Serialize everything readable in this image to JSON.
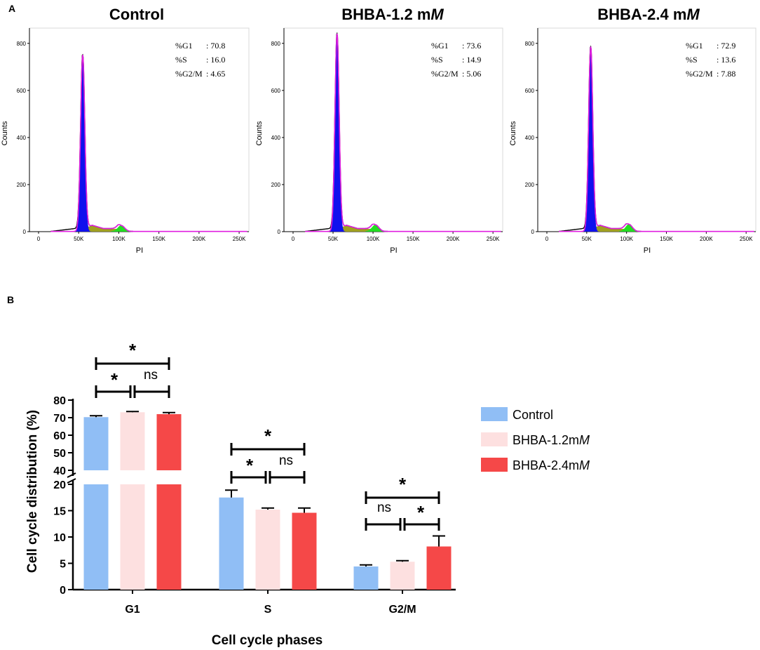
{
  "panel_a_label": "A",
  "panel_b_label": "B",
  "colors": {
    "control": "#90bef5",
    "bhba_1_2": "#fde0e0",
    "bhba_2_4": "#f54848",
    "g1_fill": "#1010ee",
    "s_fill": "#a0a020",
    "g2m_fill": "#22dd22",
    "fit_outline": "#e020e0"
  },
  "chart_data": [
    {
      "type": "area",
      "title": "Control",
      "title_plain": "Control",
      "title_italic": "",
      "xlabel": "PI",
      "ylabel": "Counts",
      "x_ticks": [
        "0",
        "50K",
        "100K",
        "150K",
        "200K",
        "250K"
      ],
      "y_ticks": [
        "0",
        "200",
        "400",
        "600",
        "800"
      ],
      "xlim": [
        0,
        262144
      ],
      "ylim": [
        0,
        850
      ],
      "g1_peak_x": 55000,
      "g1_peak_counts": 750,
      "g2m_peak_x": 103000,
      "g2m_peak_counts": 25,
      "stats": [
        {
          "label": "%G1",
          "value": "70.8"
        },
        {
          "label": "%S",
          "value": "16.0"
        },
        {
          "label": "%G2/M",
          "value": "4.65"
        }
      ]
    },
    {
      "type": "area",
      "title": "BHBA-1.2 mM",
      "title_plain": "BHBA-1.2 m",
      "title_italic": "M",
      "xlabel": "PI",
      "ylabel": "Counts",
      "x_ticks": [
        "0",
        "50K",
        "100K",
        "150K",
        "200K",
        "250K"
      ],
      "y_ticks": [
        "0",
        "200",
        "400",
        "600",
        "800"
      ],
      "xlim": [
        0,
        262144
      ],
      "ylim": [
        0,
        850
      ],
      "g1_peak_x": 55000,
      "g1_peak_counts": 840,
      "g2m_peak_x": 103000,
      "g2m_peak_counts": 28,
      "stats": [
        {
          "label": "%G1",
          "value": "73.6"
        },
        {
          "label": "%S",
          "value": "14.9"
        },
        {
          "label": "%G2/M",
          "value": "5.06"
        }
      ]
    },
    {
      "type": "area",
      "title": "BHBA-2.4 mM",
      "title_plain": "BHBA-2.4 m",
      "title_italic": "M",
      "xlabel": "PI",
      "ylabel": "Counts",
      "x_ticks": [
        "0",
        "50K",
        "100K",
        "150K",
        "200K",
        "250K"
      ],
      "y_ticks": [
        "0",
        "200",
        "400",
        "600",
        "800"
      ],
      "xlim": [
        0,
        262144
      ],
      "ylim": [
        0,
        850
      ],
      "g1_peak_x": 55000,
      "g1_peak_counts": 785,
      "g2m_peak_x": 103000,
      "g2m_peak_counts": 30,
      "stats": [
        {
          "label": "%G1",
          "value": "72.9"
        },
        {
          "label": "%S",
          "value": "13.6"
        },
        {
          "label": "%G2/M",
          "value": "7.88"
        }
      ]
    },
    {
      "type": "bar",
      "title": "",
      "xlabel": "Cell cycle phases",
      "ylabel": "Cell cycle distribution (%)",
      "categories": [
        "G1",
        "S",
        "G2/M"
      ],
      "y_ticks_lower": [
        "0",
        "5",
        "10",
        "15",
        "20"
      ],
      "y_ticks_upper": [
        "40",
        "50",
        "60",
        "70",
        "80"
      ],
      "axis_break": [
        20,
        40
      ],
      "series": [
        {
          "name": "Control",
          "name_plain": "Control",
          "name_italic": "",
          "values": [
            70.3,
            17.5,
            4.4
          ],
          "errors": [
            0.8,
            1.4,
            0.3
          ]
        },
        {
          "name": "BHBA-1.2mM",
          "name_plain": "BHBA-1.2m",
          "name_italic": "M",
          "values": [
            73.1,
            15.2,
            5.3
          ],
          "errors": [
            0.4,
            0.3,
            0.2
          ]
        },
        {
          "name": "BHBA-2.4mM",
          "name_plain": "BHBA-2.4m",
          "name_italic": "M",
          "values": [
            72.0,
            14.6,
            8.2
          ],
          "errors": [
            0.9,
            0.9,
            2.0
          ]
        }
      ],
      "significance": [
        {
          "category": "G1",
          "left": "*",
          "right": "ns",
          "overall": "*"
        },
        {
          "category": "S",
          "left": "*",
          "right": "ns",
          "overall": "*"
        },
        {
          "category": "G2/M",
          "left": "ns",
          "right": "*",
          "overall": "*"
        }
      ]
    }
  ]
}
